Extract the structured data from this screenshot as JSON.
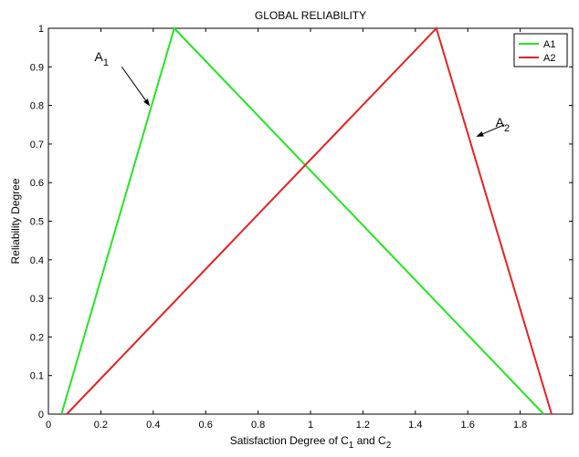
{
  "chart_data": {
    "type": "line",
    "title": "GLOBAL RELIABILITY",
    "xlabel": {
      "parts": [
        {
          "text": "Satisfaction Degree of C",
          "sub": false
        },
        {
          "text": "1",
          "sub": true
        },
        {
          "text": " and C",
          "sub": false
        },
        {
          "text": "2",
          "sub": true
        }
      ]
    },
    "ylabel": "Reliability Degree",
    "xlim": [
      0,
      2
    ],
    "ylim": [
      0,
      1
    ],
    "xticks": [
      0,
      0.2,
      0.4,
      0.6,
      0.8,
      1,
      1.2,
      1.4,
      1.6,
      1.8
    ],
    "xtick_labels": [
      "0",
      "0.2",
      "0.4",
      "0.6",
      "0.8",
      "1",
      "1.2",
      "1.4",
      "1.6",
      "1.8"
    ],
    "yticks": [
      0,
      0.1,
      0.2,
      0.3,
      0.4,
      0.5,
      0.6,
      0.7,
      0.8,
      0.9,
      1
    ],
    "ytick_labels": [
      "0",
      "0.1",
      "0.2",
      "0.3",
      "0.4",
      "0.5",
      "0.6",
      "0.7",
      "0.8",
      "0.9",
      "1"
    ],
    "grid": false,
    "legend": "top-right",
    "series": [
      {
        "name": "A1",
        "color": "#22e622",
        "x": [
          0.05,
          0.48,
          1.89
        ],
        "y": [
          0,
          1,
          0
        ]
      },
      {
        "name": "A2",
        "color": "#e62222",
        "x": [
          0.07,
          1.48,
          1.92
        ],
        "y": [
          0,
          1,
          0
        ]
      }
    ],
    "annotations": [
      {
        "text": "A",
        "sub": "1",
        "text_at": [
          0.23,
          0.915
        ],
        "arrow_from": [
          0.28,
          0.9
        ],
        "arrow_to": [
          0.385,
          0.8
        ]
      },
      {
        "text": "A",
        "sub": "2",
        "text_at": [
          1.76,
          0.745
        ],
        "arrow_from": [
          1.74,
          0.75
        ],
        "arrow_to": [
          1.635,
          0.72
        ]
      }
    ]
  }
}
